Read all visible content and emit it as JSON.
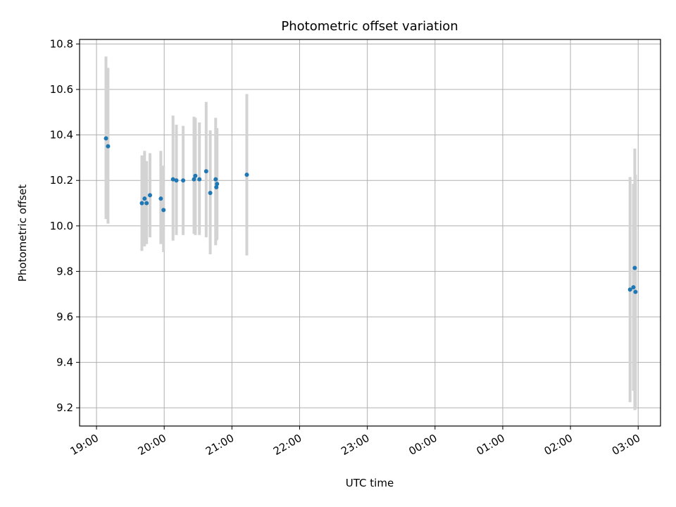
{
  "chart_data": {
    "type": "scatter",
    "title": "Photometric offset variation",
    "xlabel": "UTC time",
    "ylabel": "Photometric offset",
    "x_unit": "UTC time (hours since 19:00 start of night, 00:00 = 5)",
    "xlim": [
      -0.25,
      8.33
    ],
    "ylim": [
      9.12,
      10.82
    ],
    "grid": true,
    "x_ticks": [
      {
        "label": "19:00",
        "value": 0
      },
      {
        "label": "20:00",
        "value": 1
      },
      {
        "label": "21:00",
        "value": 2
      },
      {
        "label": "22:00",
        "value": 3
      },
      {
        "label": "23:00",
        "value": 4
      },
      {
        "label": "00:00",
        "value": 5
      },
      {
        "label": "01:00",
        "value": 6
      },
      {
        "label": "02:00",
        "value": 7
      },
      {
        "label": "03:00",
        "value": 8
      }
    ],
    "y_ticks": [
      {
        "label": "9.2",
        "value": 9.2
      },
      {
        "label": "9.4",
        "value": 9.4
      },
      {
        "label": "9.6",
        "value": 9.6
      },
      {
        "label": "9.8",
        "value": 9.8
      },
      {
        "label": "10.0",
        "value": 10.0
      },
      {
        "label": "10.2",
        "value": 10.2
      },
      {
        "label": "10.4",
        "value": 10.4
      },
      {
        "label": "10.6",
        "value": 10.6
      },
      {
        "label": "10.8",
        "value": 10.8
      }
    ],
    "colors": {
      "point": "#1f77b4",
      "errorbar": "#d3d3d3",
      "grid": "#b0b0b0"
    },
    "points": [
      {
        "x": 0.14,
        "y": 10.385,
        "ylo": 10.03,
        "yhi": 10.745
      },
      {
        "x": 0.17,
        "y": 10.35,
        "ylo": 10.01,
        "yhi": 10.695
      },
      {
        "x": 0.67,
        "y": 10.1,
        "ylo": 9.89,
        "yhi": 10.31
      },
      {
        "x": 0.71,
        "y": 10.12,
        "ylo": 9.91,
        "yhi": 10.33
      },
      {
        "x": 0.74,
        "y": 10.1,
        "ylo": 9.92,
        "yhi": 10.285
      },
      {
        "x": 0.79,
        "y": 10.135,
        "ylo": 9.95,
        "yhi": 10.32
      },
      {
        "x": 0.95,
        "y": 10.12,
        "ylo": 9.92,
        "yhi": 10.33
      },
      {
        "x": 0.99,
        "y": 10.07,
        "ylo": 9.885,
        "yhi": 10.265
      },
      {
        "x": 1.13,
        "y": 10.205,
        "ylo": 9.935,
        "yhi": 10.485
      },
      {
        "x": 1.18,
        "y": 10.2,
        "ylo": 9.96,
        "yhi": 10.445
      },
      {
        "x": 1.28,
        "y": 10.2,
        "ylo": 9.96,
        "yhi": 10.44
      },
      {
        "x": 1.44,
        "y": 10.205,
        "ylo": 9.965,
        "yhi": 10.48
      },
      {
        "x": 1.46,
        "y": 10.22,
        "ylo": 9.96,
        "yhi": 10.475
      },
      {
        "x": 1.52,
        "y": 10.205,
        "ylo": 9.96,
        "yhi": 10.455
      },
      {
        "x": 1.62,
        "y": 10.24,
        "ylo": 9.95,
        "yhi": 10.545
      },
      {
        "x": 1.68,
        "y": 10.145,
        "ylo": 9.875,
        "yhi": 10.42
      },
      {
        "x": 1.76,
        "y": 10.205,
        "ylo": 9.915,
        "yhi": 10.475
      },
      {
        "x": 1.77,
        "y": 10.17,
        "ylo": 9.935,
        "yhi": 10.425
      },
      {
        "x": 1.78,
        "y": 10.185,
        "ylo": 9.94,
        "yhi": 10.43
      },
      {
        "x": 2.22,
        "y": 10.225,
        "ylo": 9.87,
        "yhi": 10.58
      },
      {
        "x": 7.88,
        "y": 9.72,
        "ylo": 9.225,
        "yhi": 10.215
      },
      {
        "x": 7.93,
        "y": 9.73,
        "ylo": 9.275,
        "yhi": 10.185
      },
      {
        "x": 7.95,
        "y": 9.815,
        "ylo": 9.19,
        "yhi": 10.34
      },
      {
        "x": 7.96,
        "y": 9.71,
        "ylo": 9.195,
        "yhi": 10.225
      }
    ]
  }
}
